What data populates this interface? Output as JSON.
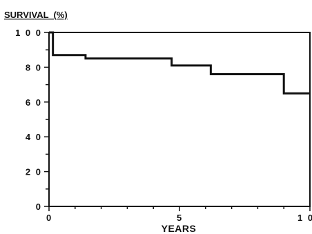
{
  "chart_data": {
    "type": "line",
    "step": true,
    "title": "",
    "xlabel": "YEARS",
    "ylabel": "SURVIVAL  (%)",
    "xlim": [
      0,
      10
    ],
    "ylim": [
      0,
      100
    ],
    "x_ticks": [
      0,
      5,
      10
    ],
    "x_tick_labels": [
      "0",
      "5",
      "1 0"
    ],
    "y_ticks": [
      0,
      20,
      40,
      60,
      80,
      100
    ],
    "y_tick_labels": [
      "0",
      "2 0",
      "4 0",
      "6 0",
      "8 0",
      "1 0 0"
    ],
    "grid": false,
    "legend": "none",
    "line_color": "#111111",
    "series": [
      {
        "x": [
          0,
          0.15,
          1.4,
          4.7,
          6.2,
          9.0,
          10
        ],
        "y": [
          100,
          87,
          85,
          81,
          76,
          65,
          65
        ]
      }
    ]
  }
}
